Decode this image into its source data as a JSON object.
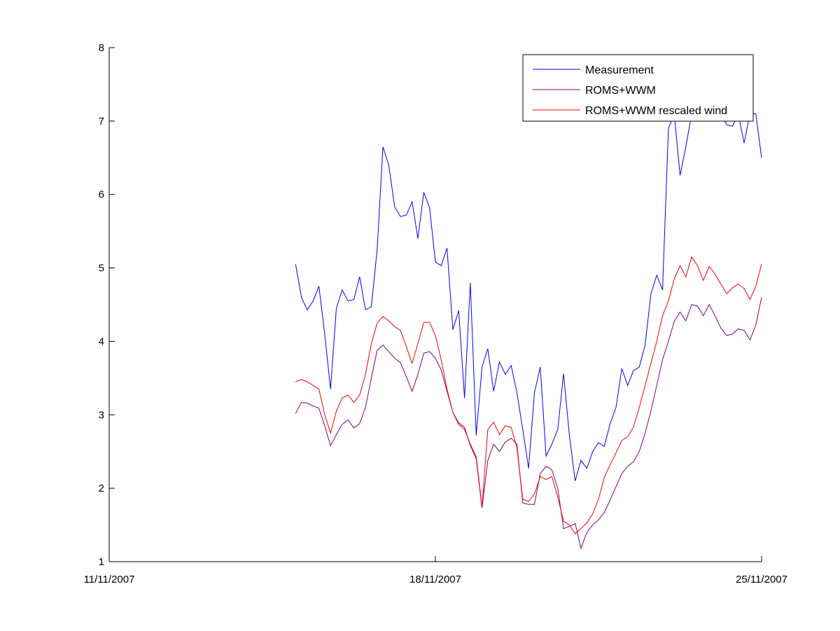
{
  "chart_data": {
    "type": "line",
    "title": "",
    "xlabel": "",
    "ylabel": "",
    "x_ticks": [
      {
        "x": 0,
        "label": "11/11/2007"
      },
      {
        "x": 7,
        "label": "18/11/2007"
      },
      {
        "x": 14,
        "label": "25/11/2007"
      }
    ],
    "xlim": [
      0,
      14
    ],
    "ylim": [
      1,
      8
    ],
    "y_ticks": [
      1,
      2,
      3,
      4,
      5,
      6,
      7,
      8
    ],
    "grid": false,
    "legend_position": "top-right",
    "series": [
      {
        "name": "Measurement",
        "color": "#0000ff",
        "x": [
          4.0,
          4.125,
          4.25,
          4.375,
          4.5,
          4.625,
          4.75,
          4.875,
          5.0,
          5.125,
          5.25,
          5.375,
          5.5,
          5.625,
          5.75,
          5.875,
          6.0,
          6.125,
          6.25,
          6.375,
          6.5,
          6.625,
          6.75,
          6.875,
          7.0,
          7.125,
          7.25,
          7.375,
          7.5,
          7.625,
          7.75,
          7.875,
          8.0,
          8.125,
          8.25,
          8.375,
          8.5,
          8.625,
          8.75,
          8.875,
          9.0,
          9.125,
          9.25,
          9.375,
          9.5,
          9.625,
          9.75,
          9.875,
          10.0,
          10.125,
          10.25,
          10.375,
          10.5,
          10.625,
          10.75,
          10.875,
          11.0,
          11.125,
          11.25,
          11.375,
          11.5,
          11.625,
          11.75,
          11.875,
          12.0,
          12.125,
          12.25,
          12.375,
          12.5,
          12.625,
          12.75,
          12.875,
          13.0,
          13.125,
          13.25,
          13.375,
          13.5,
          13.625,
          13.75,
          13.875,
          14.0
        ],
        "y": [
          5.05,
          4.6,
          4.43,
          4.55,
          4.75,
          4.1,
          3.35,
          4.45,
          4.7,
          4.55,
          4.57,
          4.88,
          4.43,
          4.47,
          5.25,
          6.65,
          6.4,
          5.83,
          5.7,
          5.72,
          5.9,
          5.4,
          6.03,
          5.82,
          5.08,
          5.03,
          5.27,
          4.16,
          4.42,
          3.23,
          4.8,
          2.72,
          3.65,
          3.9,
          3.32,
          3.72,
          3.55,
          3.67,
          3.3,
          2.8,
          2.27,
          3.3,
          3.65,
          2.44,
          2.6,
          2.8,
          3.56,
          2.72,
          2.1,
          2.38,
          2.27,
          2.5,
          2.62,
          2.57,
          2.88,
          3.1,
          3.63,
          3.4,
          3.6,
          3.65,
          3.95,
          4.65,
          4.9,
          4.7,
          6.9,
          7.1,
          6.26,
          6.65,
          7.1,
          7.1,
          7.1,
          7.1,
          7.1,
          7.1,
          6.95,
          6.93,
          7.1,
          6.7,
          7.1,
          7.1,
          6.5
        ]
      },
      {
        "name": "ROMS+WWM",
        "color": "#800080",
        "x": [
          4.0,
          4.125,
          4.25,
          4.375,
          4.5,
          4.625,
          4.75,
          4.875,
          5.0,
          5.125,
          5.25,
          5.375,
          5.5,
          5.625,
          5.75,
          5.875,
          6.0,
          6.125,
          6.25,
          6.375,
          6.5,
          6.625,
          6.75,
          6.875,
          7.0,
          7.125,
          7.25,
          7.375,
          7.5,
          7.625,
          7.75,
          7.875,
          8.0,
          8.125,
          8.25,
          8.375,
          8.5,
          8.625,
          8.75,
          8.875,
          9.0,
          9.125,
          9.25,
          9.375,
          9.5,
          9.625,
          9.75,
          9.875,
          10.0,
          10.125,
          10.25,
          10.375,
          10.5,
          10.625,
          10.75,
          10.875,
          11.0,
          11.125,
          11.25,
          11.375,
          11.5,
          11.625,
          11.75,
          11.875,
          12.0,
          12.125,
          12.25,
          12.375,
          12.5,
          12.625,
          12.75,
          12.875,
          13.0,
          13.125,
          13.25,
          13.375,
          13.5,
          13.625,
          13.75,
          13.875,
          14.0
        ],
        "y": [
          3.02,
          3.17,
          3.16,
          3.12,
          3.09,
          2.85,
          2.58,
          2.73,
          2.87,
          2.93,
          2.82,
          2.88,
          3.1,
          3.5,
          3.88,
          3.95,
          3.86,
          3.77,
          3.71,
          3.52,
          3.32,
          3.55,
          3.84,
          3.86,
          3.77,
          3.61,
          3.32,
          3.03,
          2.89,
          2.83,
          2.58,
          2.4,
          1.73,
          2.38,
          2.6,
          2.5,
          2.63,
          2.68,
          2.6,
          1.8,
          1.78,
          1.78,
          2.2,
          2.3,
          2.25,
          2.0,
          1.45,
          1.48,
          1.52,
          1.18,
          1.4,
          1.5,
          1.57,
          1.67,
          1.84,
          2.02,
          2.2,
          2.3,
          2.36,
          2.5,
          2.75,
          3.05,
          3.4,
          3.75,
          4.0,
          4.27,
          4.4,
          4.28,
          4.5,
          4.48,
          4.35,
          4.5,
          4.35,
          4.18,
          4.08,
          4.1,
          4.17,
          4.15,
          4.02,
          4.22,
          4.6
        ]
      },
      {
        "name": "ROMS+WWM rescaled wind",
        "color": "#ff0000",
        "x": [
          4.0,
          4.125,
          4.25,
          4.375,
          4.5,
          4.625,
          4.75,
          4.875,
          5.0,
          5.125,
          5.25,
          5.375,
          5.5,
          5.625,
          5.75,
          5.875,
          6.0,
          6.125,
          6.25,
          6.375,
          6.5,
          6.625,
          6.75,
          6.875,
          7.0,
          7.125,
          7.25,
          7.375,
          7.5,
          7.625,
          7.75,
          7.875,
          8.0,
          8.125,
          8.25,
          8.375,
          8.5,
          8.625,
          8.75,
          8.875,
          9.0,
          9.125,
          9.25,
          9.375,
          9.5,
          9.625,
          9.75,
          9.875,
          10.0,
          10.125,
          10.25,
          10.375,
          10.5,
          10.625,
          10.75,
          10.875,
          11.0,
          11.125,
          11.25,
          11.375,
          11.5,
          11.625,
          11.75,
          11.875,
          12.0,
          12.125,
          12.25,
          12.375,
          12.5,
          12.625,
          12.75,
          12.875,
          13.0,
          13.125,
          13.25,
          13.375,
          13.5,
          13.625,
          13.75,
          13.875,
          14.0
        ],
        "y": [
          3.45,
          3.48,
          3.45,
          3.4,
          3.35,
          3.0,
          2.75,
          3.05,
          3.23,
          3.27,
          3.17,
          3.27,
          3.55,
          3.97,
          4.25,
          4.34,
          4.28,
          4.2,
          4.15,
          3.93,
          3.7,
          3.97,
          4.26,
          4.26,
          4.08,
          3.75,
          3.35,
          3.03,
          2.87,
          2.8,
          2.6,
          2.43,
          1.75,
          2.8,
          2.9,
          2.73,
          2.85,
          2.83,
          2.55,
          1.85,
          1.82,
          1.92,
          2.16,
          2.12,
          2.16,
          1.88,
          1.55,
          1.5,
          1.38,
          1.45,
          1.53,
          1.65,
          1.85,
          2.15,
          2.32,
          2.48,
          2.65,
          2.7,
          2.83,
          3.1,
          3.4,
          3.7,
          4.0,
          4.35,
          4.55,
          4.85,
          5.03,
          4.88,
          5.15,
          5.03,
          4.83,
          5.02,
          4.92,
          4.78,
          4.65,
          4.73,
          4.78,
          4.72,
          4.57,
          4.75,
          5.05
        ]
      }
    ]
  }
}
